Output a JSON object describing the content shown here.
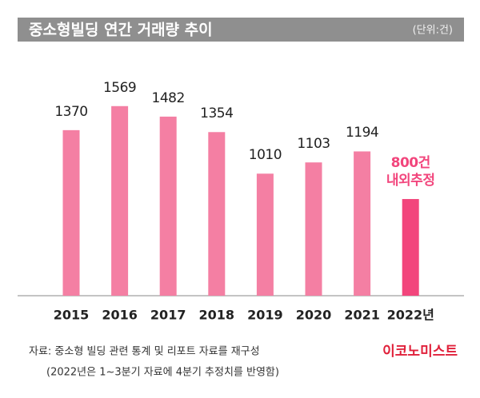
{
  "chart_data": {
    "type": "bar",
    "title": "중소형빌딩 연간 거래량 추이",
    "unit": "(단위:건)",
    "categories": [
      "2015",
      "2016",
      "2017",
      "2018",
      "2019",
      "2020",
      "2021",
      "2022년"
    ],
    "values": [
      1370,
      1569,
      1482,
      1354,
      1010,
      1103,
      1194,
      800
    ],
    "value_labels": [
      "1370",
      "1569",
      "1482",
      "1354",
      "1010",
      "1103",
      "1194",
      "800건\n내외추정"
    ],
    "colors": [
      "#f47fa3",
      "#f47fa3",
      "#f47fa3",
      "#f47fa3",
      "#f47fa3",
      "#f47fa3",
      "#f47fa3",
      "#f2457c"
    ],
    "ylim": [
      0,
      1700
    ],
    "source": "자료: 중소형 빌딩 관련 통계 및 리포트 자료를 재구성",
    "note": "(2022년은 1~3분기 자료에 4분기 추정치를 반영함)",
    "brand": "이코노미스트"
  }
}
